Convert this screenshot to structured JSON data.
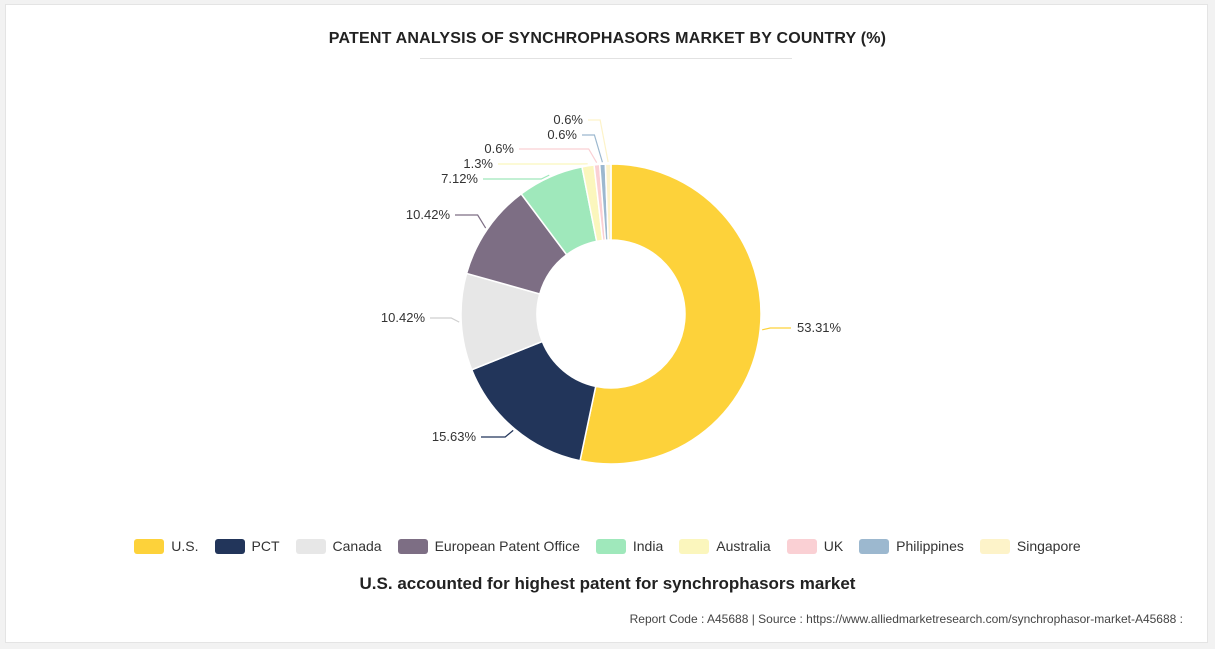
{
  "chart_data": {
    "type": "pie",
    "variant": "donut",
    "title": "PATENT ANALYSIS OF SYNCHROPHASORS MARKET BY COUNTRY (%)",
    "categories": [
      "U.S.",
      "PCT",
      "Canada",
      "European Patent Office",
      "India",
      "Australia",
      "UK",
      "Philippines",
      "Singapore"
    ],
    "values": [
      53.31,
      15.63,
      10.42,
      10.42,
      7.12,
      1.3,
      0.6,
      0.6,
      0.6
    ],
    "value_labels": [
      "53.31%",
      "15.63%",
      "10.42%",
      "10.42%",
      "7.12%",
      "1.3%",
      "0.6%",
      "0.6%",
      "0.6%"
    ],
    "colors": [
      "#fdd23a",
      "#22355a",
      "#e7e7e7",
      "#7d6e84",
      "#9fe8bb",
      "#fbf6bd",
      "#fad0d4",
      "#9cb8cf",
      "#fdf3c9"
    ],
    "legend_position": "bottom",
    "legend": [
      {
        "label": "U.S.",
        "color": "#fdd23a"
      },
      {
        "label": "PCT",
        "color": "#22355a"
      },
      {
        "label": "Canada",
        "color": "#e7e7e7"
      },
      {
        "label": "European Patent Office",
        "color": "#7d6e84"
      },
      {
        "label": "India",
        "color": "#9fe8bb"
      },
      {
        "label": "Australia",
        "color": "#fbf6bd"
      },
      {
        "label": "UK",
        "color": "#fad0d4"
      },
      {
        "label": "Philippines",
        "color": "#9cb8cf"
      },
      {
        "label": "Singapore",
        "color": "#fdf3c9"
      }
    ]
  },
  "subtitle": "U.S. accounted for highest patent for synchrophasors market",
  "footer": "Report Code : A45688  |  Source : https://www.alliedmarketresearch.com/synchrophasor-market-A45688 :"
}
